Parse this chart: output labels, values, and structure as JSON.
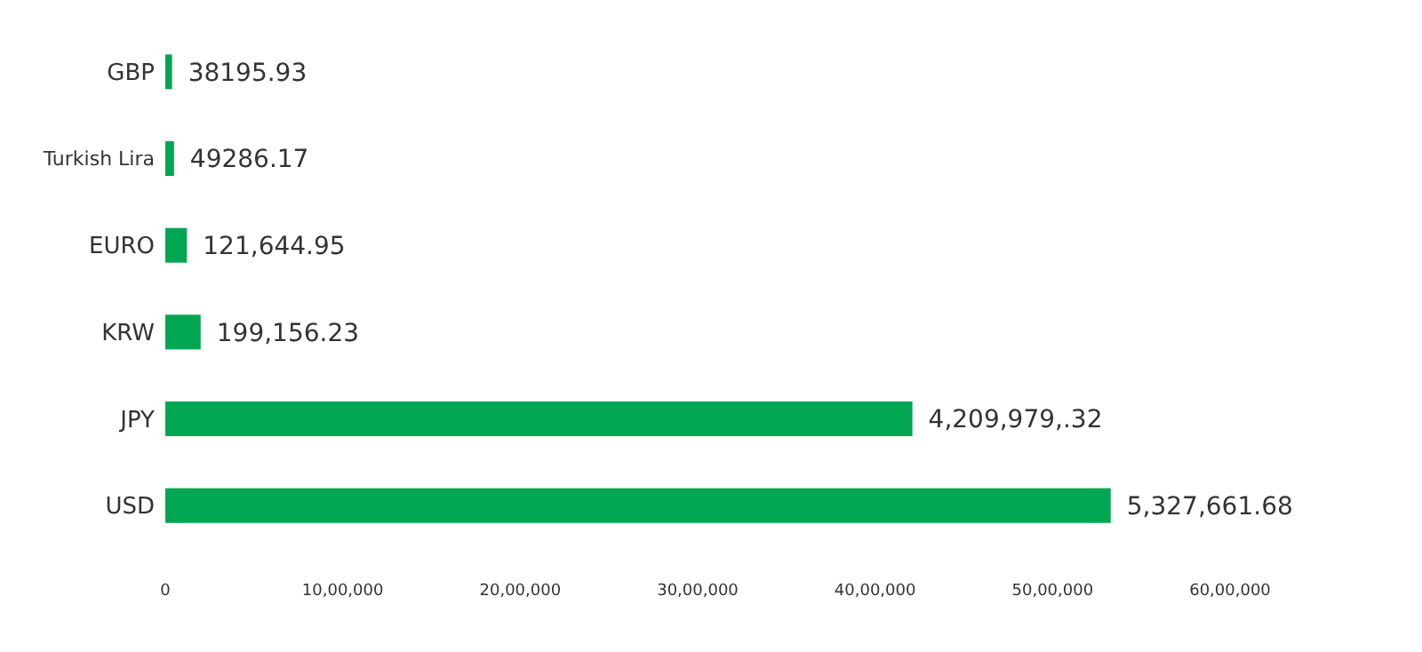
{
  "chart_data": {
    "type": "bar",
    "orientation": "horizontal",
    "categories": [
      "GBP",
      "Turkish Lira",
      "EURO",
      "KRW",
      "JPY",
      "USD"
    ],
    "values": [
      38195.93,
      49286.17,
      121644.95,
      199156.23,
      4209979.32,
      5327661.68
    ],
    "value_labels": [
      "38195.93",
      "49286.17",
      "121,644.95",
      "199,156.23",
      "4,209,979,.32",
      "5,327,661.68"
    ],
    "color": "#00a651",
    "xlim": [
      0,
      6000000
    ],
    "xticks": [
      0,
      {
        "value": 1000000,
        "label": "10,00,000"
      },
      {
        "value": 2000000,
        "label": "20,00,000"
      },
      {
        "value": 3000000,
        "label": "30,00,000"
      },
      {
        "value": 4000000,
        "label": "40,00,000"
      },
      {
        "value": 5000000,
        "label": "50,00,000"
      },
      {
        "value": 6000000,
        "label": "60,00,000"
      }
    ],
    "grid": false
  }
}
